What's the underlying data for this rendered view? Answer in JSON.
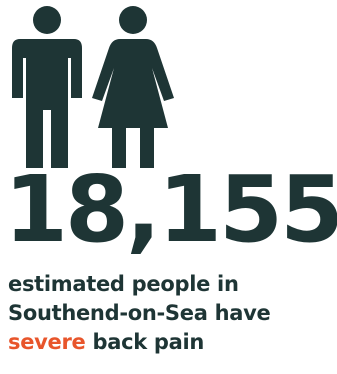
{
  "stat": {
    "value": "18,155",
    "line1": "estimated people in",
    "line2": "Southend-on-Sea have",
    "highlight": "severe",
    "line3_rest": " back pain"
  },
  "icons": {
    "male": "male-figure-icon",
    "female": "female-figure-icon"
  },
  "colors": {
    "text": "#1e3535",
    "accent": "#e8552b",
    "background": "#ffffff"
  }
}
